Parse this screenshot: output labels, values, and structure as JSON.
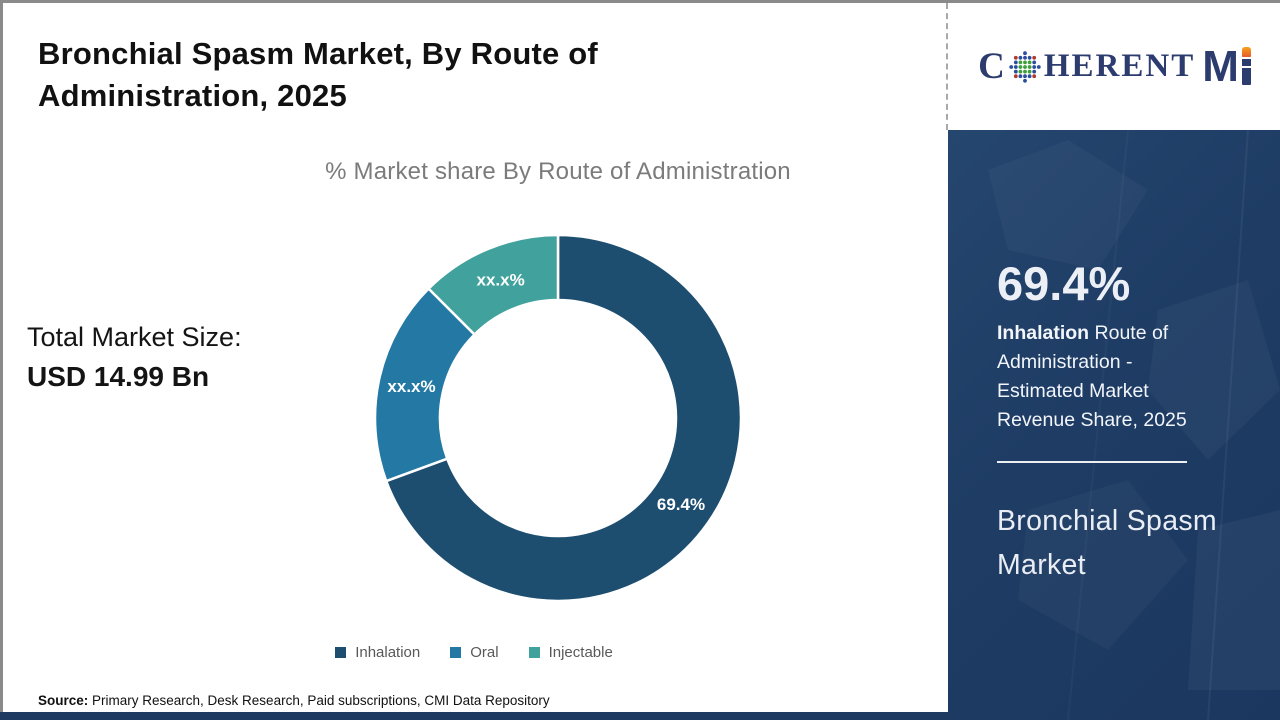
{
  "header": {
    "title": "Bronchial Spasm Market, By Route of Administration, 2025"
  },
  "logo": {
    "part_c": "C",
    "part_rest": "HERENT",
    "part_m": "M",
    "navy": "#2d3c6e",
    "orange": "#f7a11a",
    "globe_green": "#3f9f3a",
    "globe_blue": "#2b4ea0",
    "globe_red": "#b03a2e"
  },
  "left": {
    "subtitle": "% Market share By Route of Administration",
    "total_label": "Total Market Size:",
    "total_value": "USD 14.99 Bn",
    "source_label": "Source:",
    "source_text": " Primary Research, Desk Research, Paid subscriptions, CMI Data Repository"
  },
  "chart_data": {
    "type": "pie",
    "donut": true,
    "title": "% Market share By Route of Administration",
    "categories": [
      "Inhalation",
      "Oral",
      "Injectable"
    ],
    "values": [
      69.4,
      18.1,
      12.5
    ],
    "labels": [
      "69.4%",
      "xx.x%",
      "xx.x%"
    ],
    "colors": [
      "#1d4e70",
      "#2379a4",
      "#41a29d"
    ],
    "start_angle_deg": 0,
    "legend_position": "bottom",
    "note": "Oral and Injectable shares are masked as xx.x% in the figure; numeric values estimated from arc angles"
  },
  "panel": {
    "bg_color": "#1e3c64",
    "stat_value": "69.4%",
    "desc_bold": "Inhalation",
    "desc_rest": " Route of Administration - Estimated Market Revenue Share, 2025",
    "product": "Bronchial Spasm Market"
  }
}
